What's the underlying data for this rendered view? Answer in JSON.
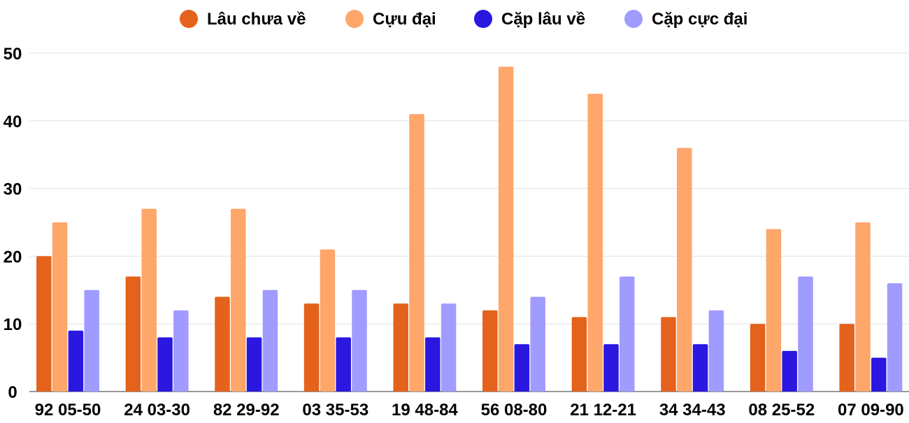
{
  "chart_data": {
    "type": "bar",
    "title": "",
    "xlabel": "",
    "ylabel": "",
    "ylim": [
      0,
      50
    ],
    "yticks": [
      0,
      10,
      20,
      30,
      40,
      50
    ],
    "grid": true,
    "legend_position": "top",
    "categories": [
      "92 05-50",
      "24 03-30",
      "82 29-92",
      "03 35-53",
      "19 48-84",
      "56 08-80",
      "21 12-21",
      "34 34-43",
      "08 25-52",
      "07 09-90"
    ],
    "series": [
      {
        "name": "Lâu chưa về",
        "color": "#E4621B",
        "values": [
          20,
          17,
          14,
          13,
          13,
          12,
          11,
          11,
          10,
          10
        ]
      },
      {
        "name": "Cựu đại",
        "color": "#FFA66B",
        "values": [
          25,
          27,
          27,
          21,
          41,
          48,
          44,
          36,
          24,
          25
        ]
      },
      {
        "name": "Cặp lâu về",
        "color": "#2A17E0",
        "values": [
          9,
          8,
          8,
          8,
          8,
          7,
          7,
          7,
          6,
          5
        ]
      },
      {
        "name": "Cặp cực đại",
        "color": "#A09BFF",
        "values": [
          15,
          12,
          15,
          15,
          13,
          14,
          17,
          12,
          17,
          16
        ]
      }
    ]
  }
}
